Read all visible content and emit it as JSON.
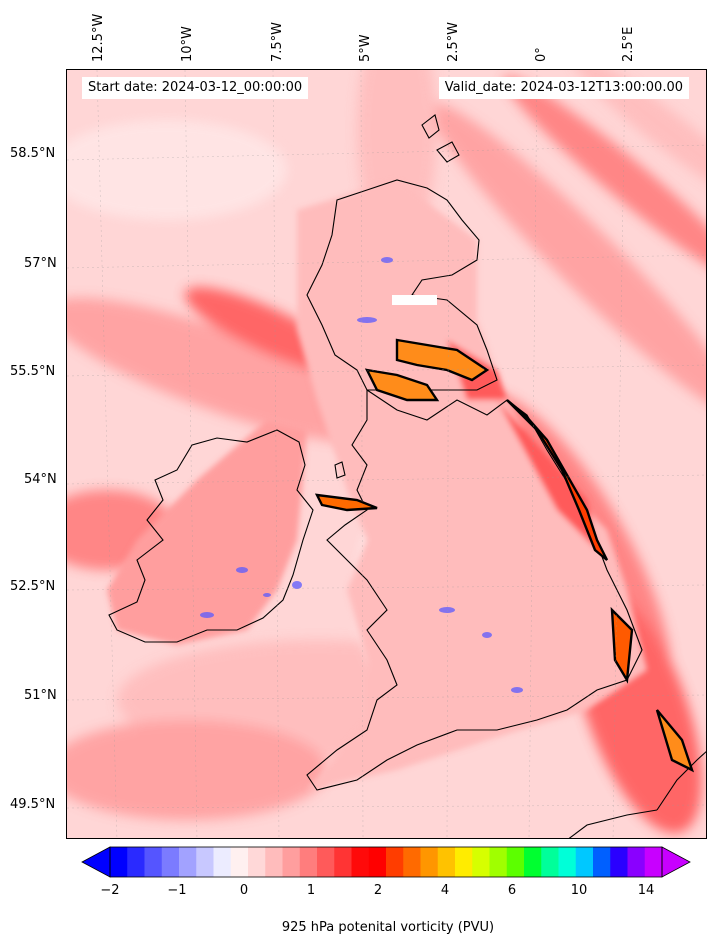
{
  "header": {
    "start_date": "Start date: 2024-03-12_00:00:00",
    "valid_date": "Valid_date: 2024-03-12T13:00:00.00"
  },
  "longitude_labels": [
    "12.5°W",
    "10°W",
    "7.5°W",
    "5°W",
    "2.5°W",
    "0°",
    "2.5°E"
  ],
  "latitude_labels": [
    "58.5°N",
    "57°N",
    "55.5°N",
    "54°N",
    "52.5°N",
    "51°N",
    "49.5°N"
  ],
  "colorbar": {
    "label": "925 hPa potenital vorticity (PVU)",
    "ticks": [
      "−2",
      "−1",
      "0",
      "1",
      "2",
      "4",
      "6",
      "10",
      "14"
    ],
    "colors": [
      "#0000ff",
      "#2a2aff",
      "#5555ff",
      "#7b7bff",
      "#a2a2ff",
      "#c8c8ff",
      "#ececff",
      "#fff0f0",
      "#ffd8d8",
      "#ffbcbc",
      "#ff9e9e",
      "#ff7d7d",
      "#ff5a5a",
      "#ff3434",
      "#ff0a0a",
      "#ff0000",
      "#ff3d00",
      "#ff6a00",
      "#ff9600",
      "#ffc200",
      "#ffec00",
      "#d6ff00",
      "#a0ff00",
      "#5cff00",
      "#00ff30",
      "#00ff9a",
      "#00ffd8",
      "#00c8ff",
      "#0060ff",
      "#2a00ff",
      "#8a00ff",
      "#c800ff"
    ]
  },
  "map_colors": {
    "background": "#ffd6d6",
    "strong": "#ff3333",
    "medium": "#ff7d7d",
    "light": "#ffbcbc",
    "orange": "#ff8c1a",
    "negative": "#5a5aff"
  }
}
